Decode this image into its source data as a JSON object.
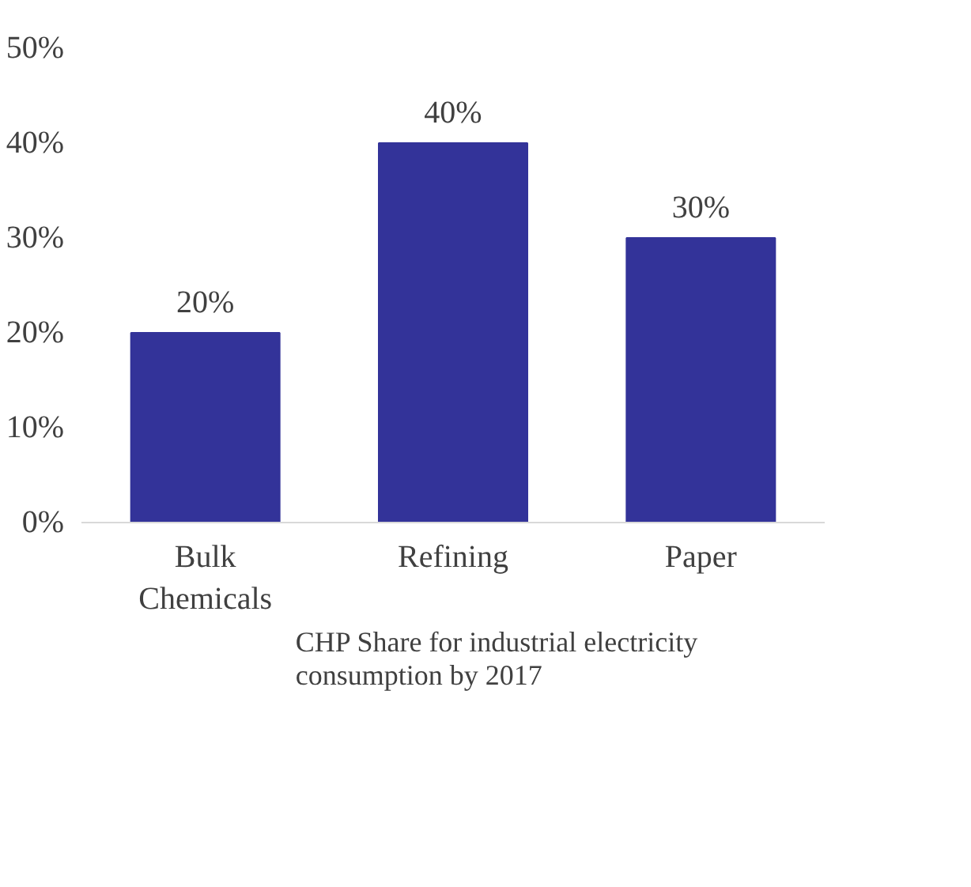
{
  "chart_data": {
    "type": "bar",
    "categories": [
      "Bulk Chemicals",
      "Refining",
      "Paper"
    ],
    "series": [
      {
        "name": "CHP Share for industrial electricity consumption by 2017",
        "color": "#333399",
        "values": [
          20,
          40,
          30
        ],
        "value_labels": [
          "20%",
          "40%",
          "30%"
        ]
      }
    ],
    "ylim": [
      0,
      50
    ],
    "yticks": [
      {
        "value": 0,
        "label": "0%"
      },
      {
        "value": 10,
        "label": "10%"
      },
      {
        "value": 20,
        "label": "20%"
      },
      {
        "value": 30,
        "label": "30%"
      },
      {
        "value": 40,
        "label": "40%"
      },
      {
        "value": 50,
        "label": "50%"
      }
    ],
    "grid": false,
    "legend": "bottom"
  }
}
